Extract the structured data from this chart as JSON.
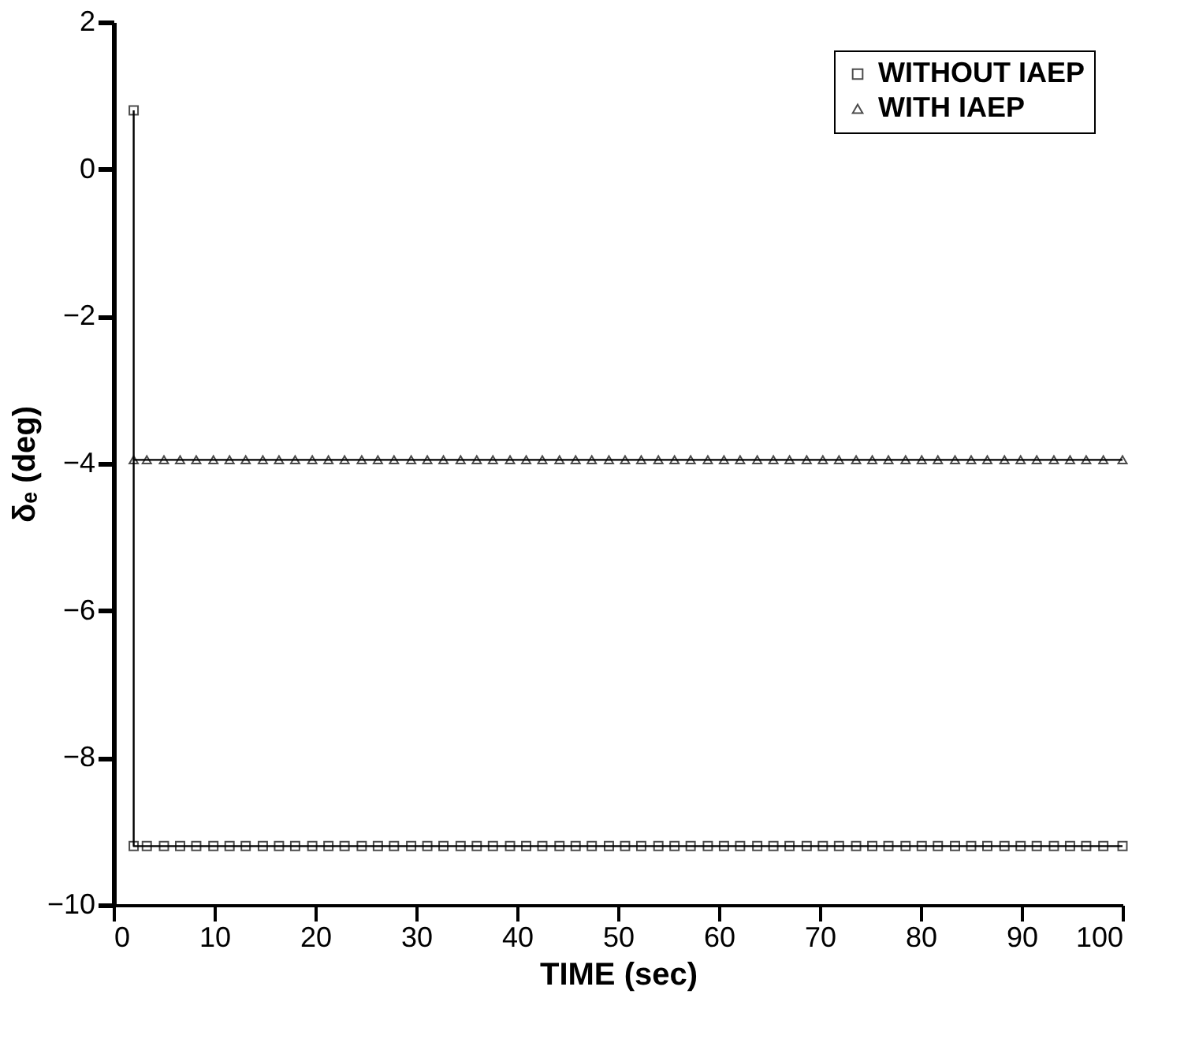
{
  "chart_data": {
    "type": "line",
    "xlabel": "TIME (sec)",
    "ylabel": "δₑ (deg)",
    "xlim": [
      0,
      100
    ],
    "ylim": [
      -10,
      2
    ],
    "xticks": [
      0,
      10,
      20,
      30,
      40,
      50,
      60,
      70,
      80,
      90,
      100
    ],
    "yticks": [
      -10,
      -8,
      -6,
      -4,
      -2,
      0,
      2
    ],
    "grid": false,
    "legend": "top right",
    "line_style": "solid",
    "x": [
      2,
      2,
      3.3,
      5,
      6.6,
      8.2,
      9.9,
      11.5,
      13.1,
      14.8,
      16.4,
      18,
      19.7,
      21.3,
      22.9,
      24.6,
      26.2,
      27.8,
      29.5,
      31.1,
      32.7,
      34.4,
      36,
      37.6,
      39.3,
      40.9,
      42.5,
      44.2,
      45.8,
      47.4,
      49.1,
      50.7,
      52.3,
      54,
      55.6,
      57.2,
      58.9,
      60.5,
      62.1,
      63.8,
      65.4,
      67,
      68.7,
      70.3,
      71.9,
      73.6,
      75.2,
      76.8,
      78.5,
      80.1,
      81.7,
      83.4,
      85,
      86.6,
      88.3,
      89.9,
      91.5,
      93.2,
      94.8,
      96.4,
      98.1,
      100
    ],
    "series": [
      {
        "name": "WITHOUT IAEP",
        "color": "#000000",
        "marker": "square",
        "values": [
          0.8,
          -9.2,
          -9.2,
          -9.2,
          -9.2,
          -9.2,
          -9.2,
          -9.2,
          -9.2,
          -9.2,
          -9.2,
          -9.2,
          -9.2,
          -9.2,
          -9.2,
          -9.2,
          -9.2,
          -9.2,
          -9.2,
          -9.2,
          -9.2,
          -9.2,
          -9.2,
          -9.2,
          -9.2,
          -9.2,
          -9.2,
          -9.2,
          -9.2,
          -9.2,
          -9.2,
          -9.2,
          -9.2,
          -9.2,
          -9.2,
          -9.2,
          -9.2,
          -9.2,
          -9.2,
          -9.2,
          -9.2,
          -9.2,
          -9.2,
          -9.2,
          -9.2,
          -9.2,
          -9.2,
          -9.2,
          -9.2,
          -9.2,
          -9.2,
          -9.2,
          -9.2,
          -9.2,
          -9.2,
          -9.2,
          -9.2,
          -9.2,
          -9.2,
          -9.2,
          -9.2,
          -9.2
        ]
      },
      {
        "name": "WITH IAEP",
        "color": "#000000",
        "marker": "triangle",
        "x": [
          2,
          3.3,
          5,
          6.6,
          8.2,
          9.9,
          11.5,
          13.1,
          14.8,
          16.4,
          18,
          19.7,
          21.3,
          22.9,
          24.6,
          26.2,
          27.8,
          29.5,
          31.1,
          32.7,
          34.4,
          36,
          37.6,
          39.3,
          40.9,
          42.5,
          44.2,
          45.8,
          47.4,
          49.1,
          50.7,
          52.3,
          54,
          55.6,
          57.2,
          58.9,
          60.5,
          62.1,
          63.8,
          65.4,
          67,
          68.7,
          70.3,
          71.9,
          73.6,
          75.2,
          76.8,
          78.5,
          80.1,
          81.7,
          83.4,
          85,
          86.6,
          88.3,
          89.9,
          91.5,
          93.2,
          94.8,
          96.4,
          98.1,
          100
        ],
        "values": [
          -3.95,
          -3.95,
          -3.95,
          -3.95,
          -3.95,
          -3.95,
          -3.95,
          -3.95,
          -3.95,
          -3.95,
          -3.95,
          -3.95,
          -3.95,
          -3.95,
          -3.95,
          -3.95,
          -3.95,
          -3.95,
          -3.95,
          -3.95,
          -3.95,
          -3.95,
          -3.95,
          -3.95,
          -3.95,
          -3.95,
          -3.95,
          -3.95,
          -3.95,
          -3.95,
          -3.95,
          -3.95,
          -3.95,
          -3.95,
          -3.95,
          -3.95,
          -3.95,
          -3.95,
          -3.95,
          -3.95,
          -3.95,
          -3.95,
          -3.95,
          -3.95,
          -3.95,
          -3.95,
          -3.95,
          -3.95,
          -3.95,
          -3.95,
          -3.95,
          -3.95,
          -3.95,
          -3.95,
          -3.95,
          -3.95,
          -3.95,
          -3.95,
          -3.95,
          -3.95,
          -3.95
        ]
      }
    ]
  }
}
